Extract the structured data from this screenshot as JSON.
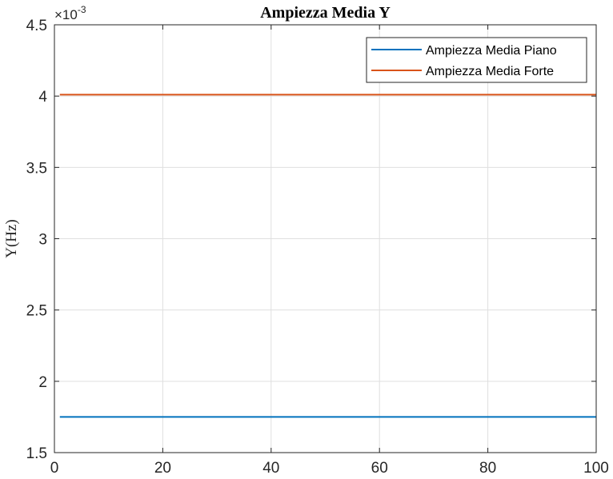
{
  "chart_data": {
    "type": "line",
    "title": "Ampiezza Media Y",
    "xlabel": "",
    "ylabel": "Y(Hz)",
    "xlim": [
      0,
      100
    ],
    "ylim": [
      0.0015,
      0.0045
    ],
    "y_scale_exponent": "-3",
    "x_ticks": [
      "0",
      "20",
      "40",
      "60",
      "80",
      "100"
    ],
    "y_ticks": [
      "1.5",
      "2",
      "2.5",
      "3",
      "3.5",
      "4",
      "4.5"
    ],
    "grid": true,
    "legend_position": "top-right",
    "series": [
      {
        "name": "Ampiezza Media Piano",
        "color": "#0072BD",
        "x": [
          1,
          100
        ],
        "y": [
          0.00175,
          0.00175
        ]
      },
      {
        "name": "Ampiezza Media Forte",
        "color": "#D95319",
        "x": [
          1,
          100
        ],
        "y": [
          0.00401,
          0.00401
        ]
      }
    ]
  }
}
